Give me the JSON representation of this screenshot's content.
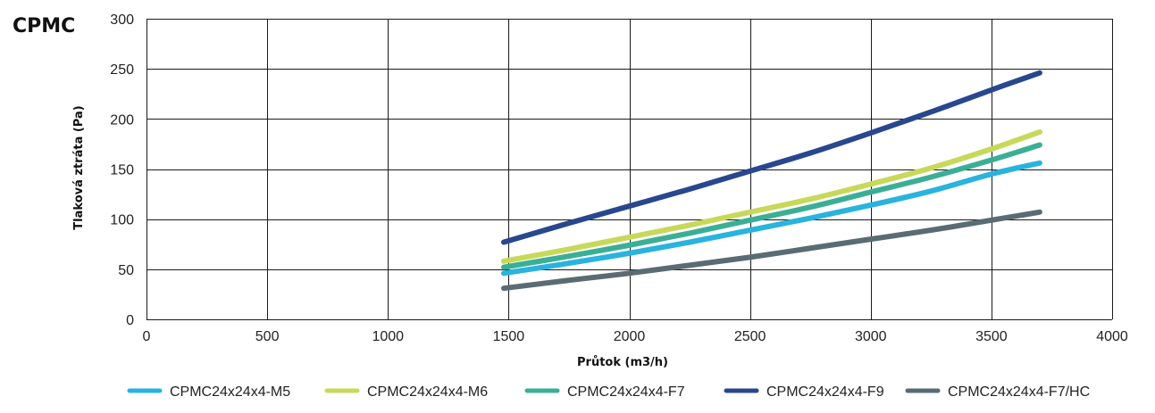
{
  "brand": "CPMC",
  "chart_data": {
    "type": "line",
    "title": "",
    "xlabel": "Průtok (m3/h)",
    "ylabel": "Tlaková ztráta (Pa)",
    "xlim": [
      0,
      4000
    ],
    "ylim": [
      0,
      300
    ],
    "xticks": [
      0,
      500,
      1000,
      1500,
      2000,
      2500,
      3000,
      3500,
      4000
    ],
    "yticks": [
      0,
      50,
      100,
      150,
      200,
      250,
      300
    ],
    "x_tick_labels": [
      "0",
      "500",
      "1000",
      "1500",
      "2000",
      "2500",
      "3000",
      "3500",
      "4000"
    ],
    "y_tick_labels": [
      "0",
      "50",
      "100",
      "150",
      "200",
      "250",
      "300"
    ],
    "grid": true,
    "legend_position": "bottom",
    "series": [
      {
        "name": "CPMC24x24x4-M5",
        "color": "#29b3de",
        "x": [
          1480,
          1750,
          2000,
          2250,
          2500,
          2750,
          3000,
          3250,
          3500,
          3700
        ],
        "y": [
          46,
          56,
          66,
          77,
          89,
          101,
          114,
          128,
          145,
          156
        ]
      },
      {
        "name": "CPMC24x24x4-M6",
        "color": "#c8d85a",
        "x": [
          1480,
          1750,
          2000,
          2250,
          2500,
          2750,
          3000,
          3250,
          3500,
          3700
        ],
        "y": [
          58,
          70,
          82,
          94,
          107,
          120,
          135,
          151,
          170,
          187
        ]
      },
      {
        "name": "CPMC24x24x4-F7",
        "color": "#3aaf96",
        "x": [
          1480,
          1750,
          2000,
          2250,
          2500,
          2750,
          3000,
          3250,
          3500,
          3700
        ],
        "y": [
          52,
          63,
          74,
          86,
          99,
          112,
          127,
          142,
          159,
          174
        ]
      },
      {
        "name": "CPMC24x24x4-F9",
        "color": "#28478f",
        "x": [
          1480,
          1750,
          2000,
          2250,
          2500,
          2750,
          3000,
          3250,
          3500,
          3700
        ],
        "y": [
          77,
          96,
          113,
          130,
          148,
          166,
          186,
          207,
          229,
          246
        ]
      },
      {
        "name": "CPMC24x24x4-F7/HC",
        "color": "#5a6b73",
        "x": [
          1480,
          1750,
          2000,
          2250,
          2500,
          2750,
          3000,
          3250,
          3500,
          3700
        ],
        "y": [
          31,
          39,
          46,
          54,
          62,
          71,
          80,
          89,
          99,
          107
        ]
      }
    ]
  }
}
